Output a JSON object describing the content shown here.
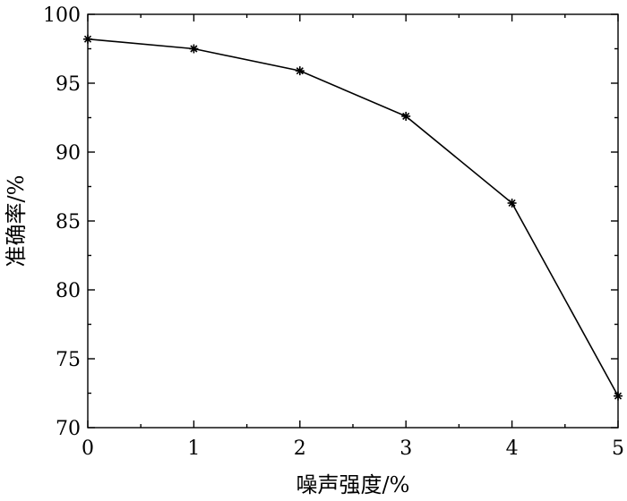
{
  "chart_data": {
    "type": "line",
    "title": "",
    "xlabel": "噪声强度/%",
    "ylabel": "准确率/%",
    "xlim": [
      0,
      5
    ],
    "ylim": [
      70,
      100
    ],
    "x_ticks": [
      0,
      1,
      2,
      3,
      4,
      5
    ],
    "y_ticks": [
      70,
      75,
      80,
      85,
      90,
      95,
      100
    ],
    "grid": false,
    "legend": "none",
    "marker": "asterisk",
    "color": "#000000",
    "series": [
      {
        "x": [
          0,
          1,
          2,
          3,
          4,
          5
        ],
        "values": [
          98.2,
          97.5,
          95.9,
          92.6,
          86.3,
          72.3
        ]
      }
    ]
  }
}
